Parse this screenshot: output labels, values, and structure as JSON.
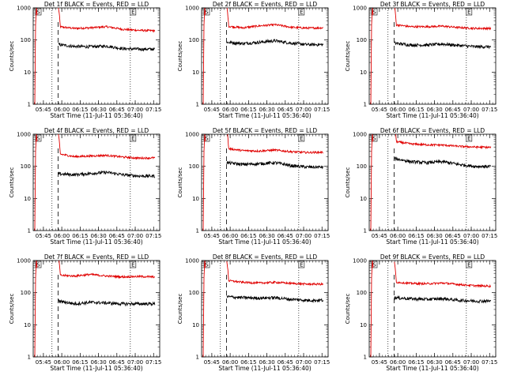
{
  "chart_data": {
    "type": "line",
    "y_scale": "log",
    "ylim": [
      1,
      1000
    ],
    "xlim": [
      "05:36:40",
      "07:20:00"
    ],
    "x_ticks": [
      "05:45",
      "06:00",
      "06:15",
      "06:30",
      "06:45",
      "07:00",
      "07:15"
    ],
    "y_ticks": [
      "1",
      "10",
      "100",
      "1000"
    ],
    "ylabel": "Counts/sec",
    "xlabel": "Start Time (11-Jul-11 05:36:40)",
    "marker_labels": [
      "S",
      "E"
    ],
    "dashed_line_time": "05:57",
    "dotted_line_times": [
      "05:52",
      "06:56"
    ],
    "series_colors": {
      "events": "#000000",
      "lld": "#e00000"
    },
    "panels": [
      {
        "title": "Det 1f BLACK = Events, RED = LLD",
        "lld_level": [
          260,
          230,
          240,
          260,
          215,
          200,
          195
        ],
        "events_level": [
          72,
          63,
          62,
          65,
          54,
          52,
          52
        ]
      },
      {
        "title": "Det 2f BLACK = Events, RED = LLD",
        "lld_level": [
          270,
          240,
          275,
          300,
          250,
          235,
          240
        ],
        "events_level": [
          85,
          78,
          85,
          95,
          80,
          72,
          72
        ]
      },
      {
        "title": "Det 3f BLACK = Events, RED = LLD",
        "lld_level": [
          300,
          260,
          260,
          270,
          245,
          230,
          230
        ],
        "events_level": [
          80,
          70,
          70,
          75,
          68,
          62,
          62
        ]
      },
      {
        "title": "Det 4f BLACK = Events, RED = LLD",
        "lld_level": [
          245,
          200,
          210,
          220,
          195,
          180,
          185
        ],
        "events_level": [
          58,
          55,
          60,
          65,
          55,
          50,
          50
        ]
      },
      {
        "title": "Det 5f BLACK = Events, RED = LLD",
        "lld_level": [
          360,
          310,
          300,
          320,
          285,
          270,
          275
        ],
        "events_level": [
          130,
          115,
          120,
          130,
          105,
          95,
          95
        ]
      },
      {
        "title": "Det 6f BLACK = Events, RED = LLD",
        "lld_level": [
          600,
          500,
          470,
          460,
          420,
          400,
          390
        ],
        "events_level": [
          175,
          140,
          130,
          140,
          115,
          100,
          100
        ]
      },
      {
        "title": "Det 7f BLACK = Events, RED = LLD",
        "lld_level": [
          350,
          330,
          370,
          330,
          310,
          320,
          310
        ],
        "events_level": [
          55,
          45,
          50,
          48,
          45,
          45,
          45
        ]
      },
      {
        "title": "Det 8f BLACK = Events, RED = LLD",
        "lld_level": [
          240,
          210,
          200,
          210,
          195,
          185,
          185
        ],
        "events_level": [
          75,
          70,
          68,
          70,
          62,
          58,
          58
        ]
      },
      {
        "title": "Det 9f BLACK = Events, RED = LLD",
        "lld_level": [
          215,
          195,
          190,
          200,
          180,
          165,
          160
        ],
        "events_level": [
          70,
          65,
          62,
          65,
          58,
          55,
          55
        ]
      }
    ]
  }
}
